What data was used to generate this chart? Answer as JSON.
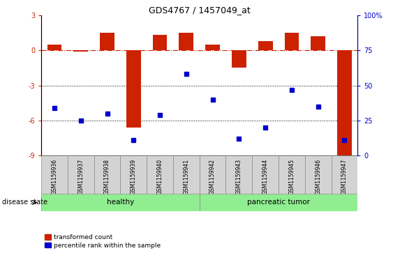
{
  "title": "GDS4767 / 1457049_at",
  "samples": [
    "GSM1159936",
    "GSM1159937",
    "GSM1159938",
    "GSM1159939",
    "GSM1159940",
    "GSM1159941",
    "GSM1159942",
    "GSM1159943",
    "GSM1159944",
    "GSM1159945",
    "GSM1159946",
    "GSM1159947"
  ],
  "transformed_count": [
    0.5,
    -0.1,
    1.5,
    -6.6,
    1.3,
    1.5,
    0.5,
    -1.5,
    0.8,
    1.5,
    1.2,
    -9.2
  ],
  "percentile_rank": [
    34,
    25,
    30,
    11,
    29,
    58,
    40,
    12,
    20,
    47,
    35,
    11
  ],
  "ylim_left": [
    -9,
    3
  ],
  "ylim_right": [
    0,
    100
  ],
  "yticks_left": [
    -9,
    -6,
    -3,
    0,
    3
  ],
  "yticks_right": [
    0,
    25,
    50,
    75,
    100
  ],
  "yticklabels_right": [
    "0",
    "25",
    "50",
    "75",
    "100%"
  ],
  "hline_y": 0,
  "dotted_lines": [
    -3,
    -6
  ],
  "bar_color": "#CC2200",
  "point_color": "#0000CC",
  "hline_color": "#CC2200",
  "group1_label": "healthy",
  "group2_label": "pancreatic tumor",
  "group1_indices": [
    0,
    1,
    2,
    3,
    4,
    5
  ],
  "group2_indices": [
    6,
    7,
    8,
    9,
    10,
    11
  ],
  "group_box_color": "#90EE90",
  "label_box_color": "#D3D3D3",
  "disease_state_label": "disease state",
  "legend_red_label": "transformed count",
  "legend_blue_label": "percentile rank within the sample",
  "bar_width": 0.55
}
